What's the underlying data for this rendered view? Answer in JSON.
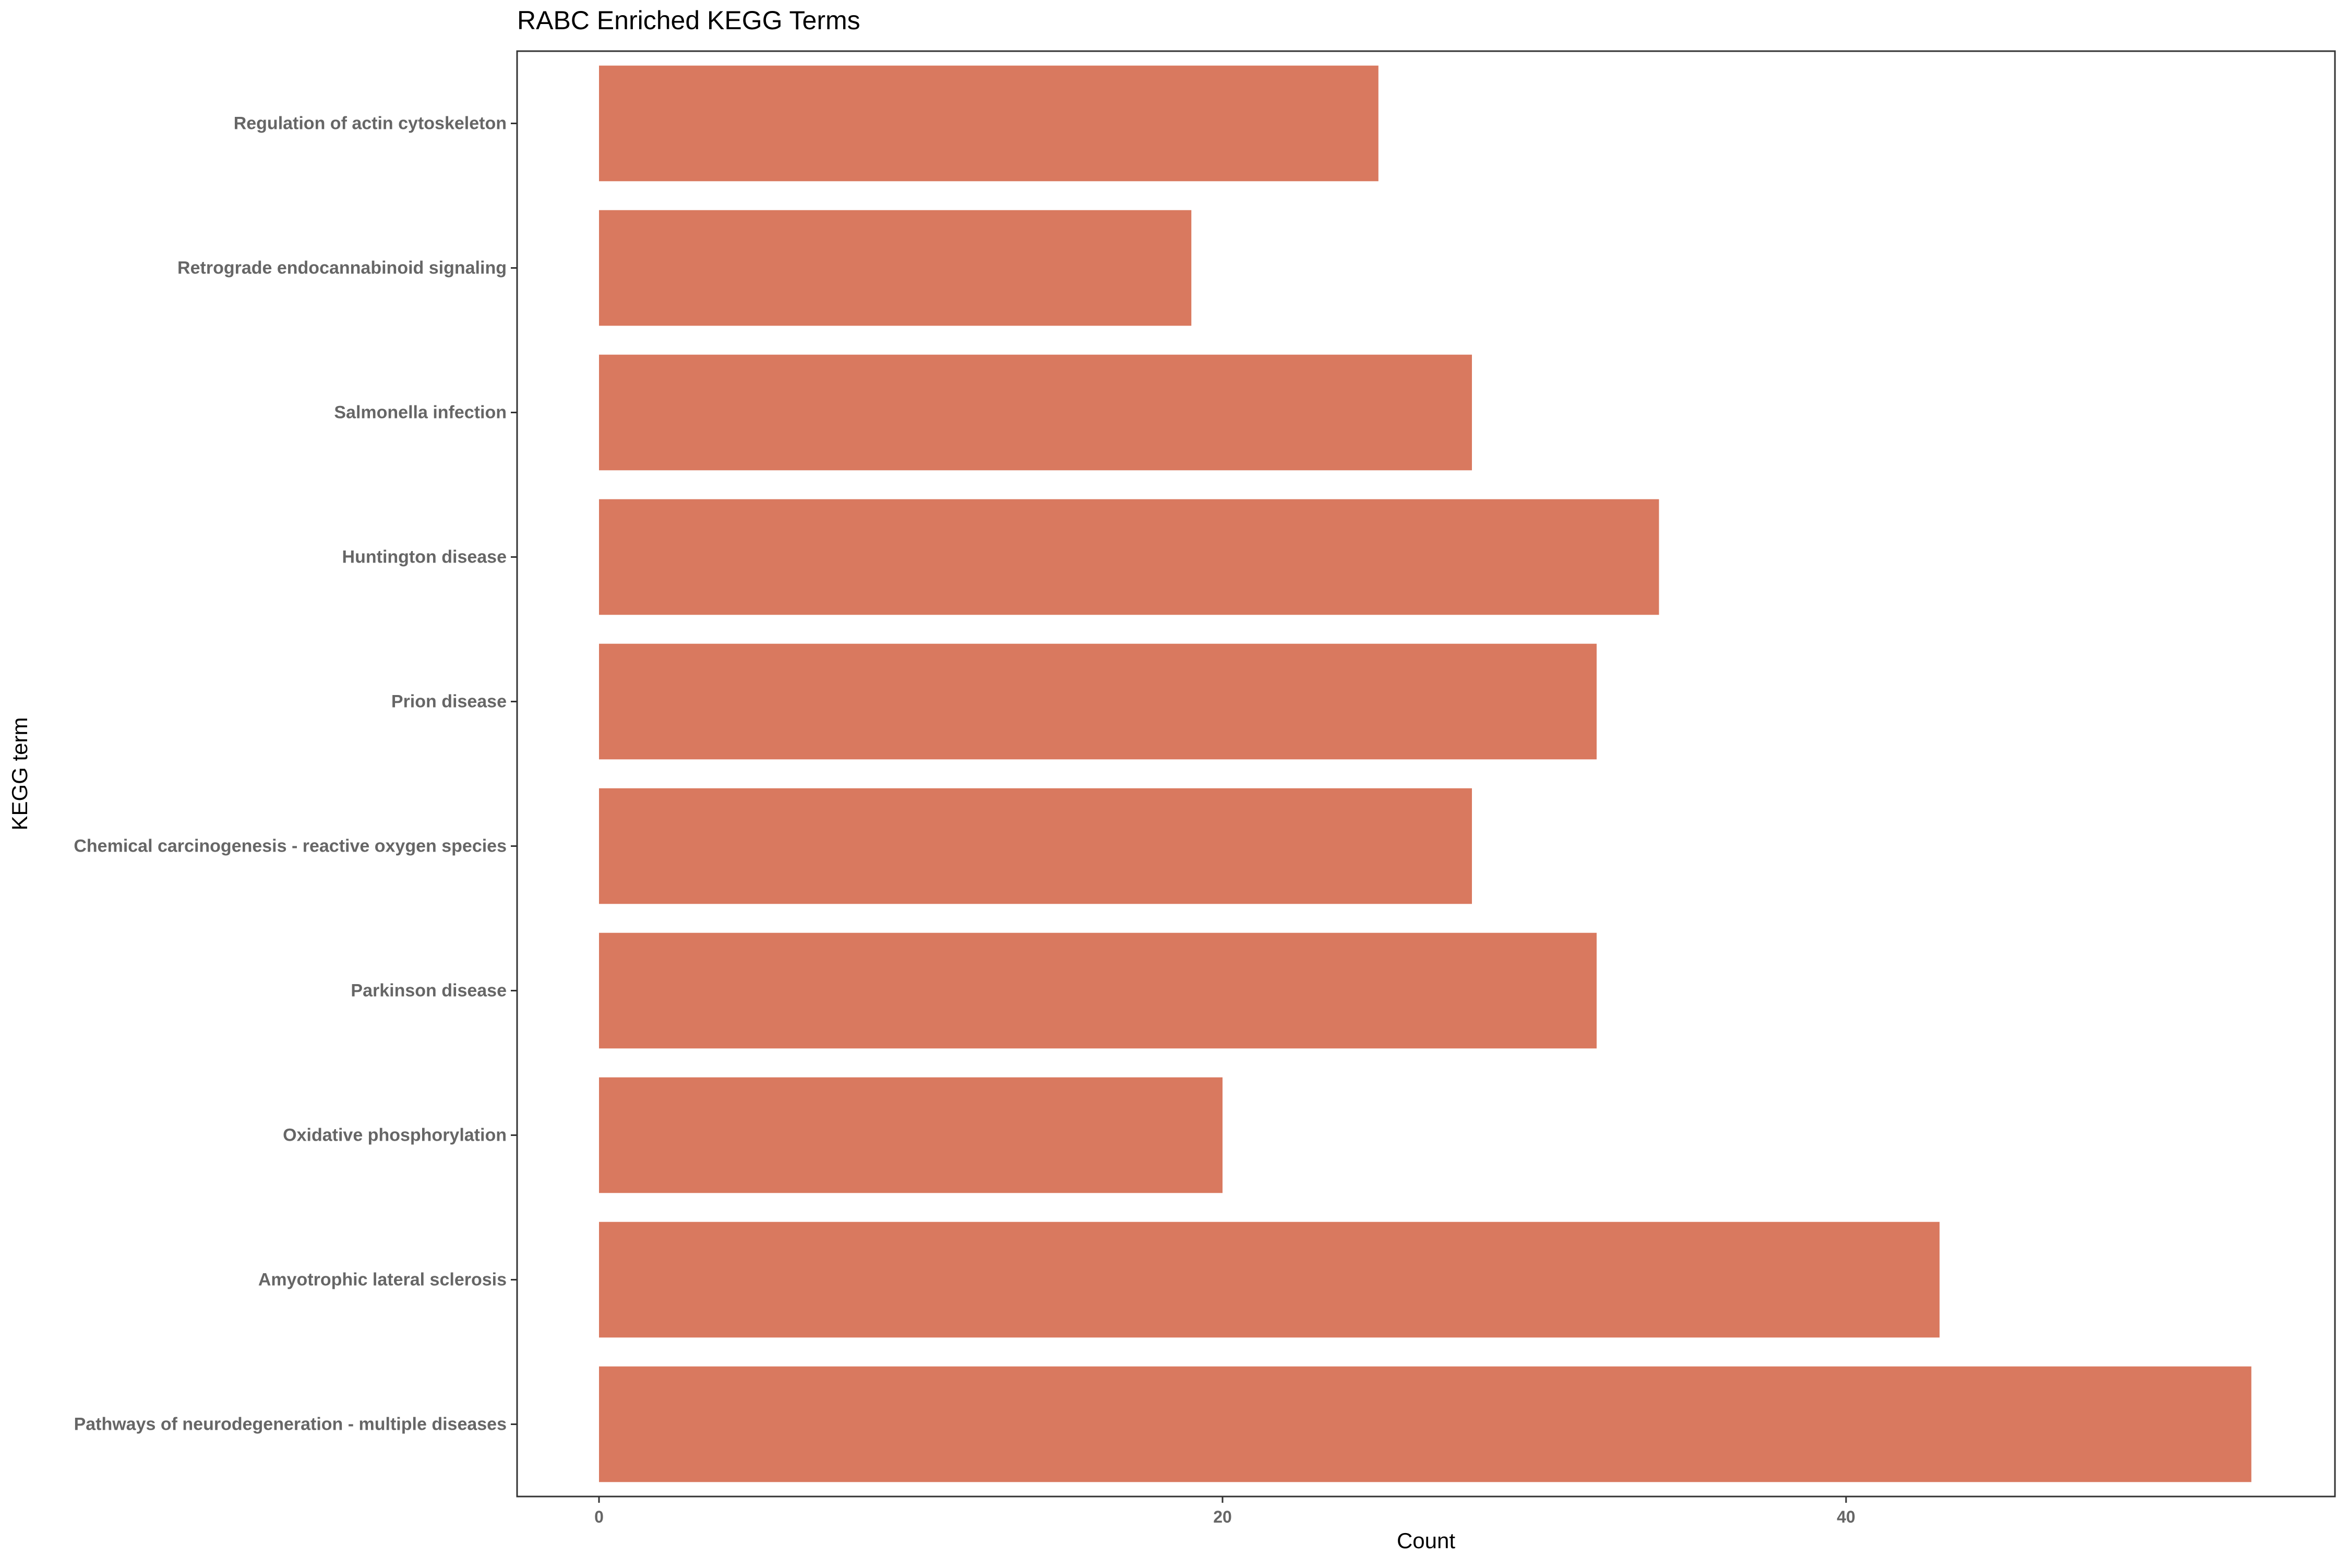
{
  "chart_data": {
    "type": "bar",
    "orientation": "horizontal",
    "title": "RABC Enriched KEGG Terms",
    "xlabel": "Count",
    "ylabel": "KEGG term",
    "categories": [
      "Regulation of actin cytoskeleton",
      "Retrograde endocannabinoid signaling",
      "Salmonella infection",
      "Huntington disease",
      "Prion disease",
      "Chemical carcinogenesis - reactive oxygen species",
      "Parkinson disease",
      "Oxidative phosphorylation",
      "Amyotrophic lateral sclerosis",
      "Pathways of neurodegeneration - multiple diseases"
    ],
    "values": [
      25,
      19,
      28,
      34,
      32,
      28,
      32,
      20,
      43,
      53
    ],
    "xlim": [
      -2.65,
      55.65
    ],
    "xticks": [
      0,
      20,
      40
    ],
    "bar_color": "#D9795F",
    "grid": false
  }
}
